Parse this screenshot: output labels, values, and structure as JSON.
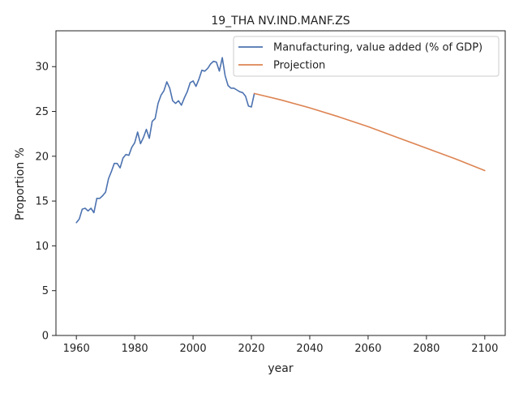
{
  "chart_data": {
    "type": "line",
    "title": "19_THA NV.IND.MANF.ZS",
    "xlabel": "year",
    "ylabel": "Proportion %",
    "xlim": [
      1953,
      2107
    ],
    "ylim": [
      0,
      34
    ],
    "xticks": [
      1960,
      1980,
      2000,
      2020,
      2040,
      2060,
      2080,
      2100
    ],
    "yticks": [
      0,
      5,
      10,
      15,
      20,
      25,
      30
    ],
    "grid": false,
    "legend_position": "top-right",
    "series": [
      {
        "name": "Manufacturing, value added (% of GDP)",
        "color": "#4c72b0",
        "x": [
          1960,
          1961,
          1962,
          1963,
          1964,
          1965,
          1966,
          1967,
          1968,
          1969,
          1970,
          1971,
          1972,
          1973,
          1974,
          1975,
          1976,
          1977,
          1978,
          1979,
          1980,
          1981,
          1982,
          1983,
          1984,
          1985,
          1986,
          1987,
          1988,
          1989,
          1990,
          1991,
          1992,
          1993,
          1994,
          1995,
          1996,
          1997,
          1998,
          1999,
          2000,
          2001,
          2002,
          2003,
          2004,
          2005,
          2006,
          2007,
          2008,
          2009,
          2010,
          2011,
          2012,
          2013,
          2014,
          2015,
          2016,
          2017,
          2018,
          2019,
          2020,
          2021
        ],
        "y": [
          12.6,
          13.0,
          14.1,
          14.2,
          13.9,
          14.2,
          13.7,
          15.3,
          15.3,
          15.6,
          16.0,
          17.5,
          18.3,
          19.2,
          19.2,
          18.7,
          19.8,
          20.2,
          20.1,
          21.0,
          21.5,
          22.7,
          21.4,
          22.1,
          23.0,
          22.0,
          23.9,
          24.2,
          25.9,
          26.8,
          27.3,
          28.3,
          27.6,
          26.2,
          25.9,
          26.2,
          25.7,
          26.5,
          27.2,
          28.2,
          28.4,
          27.8,
          28.6,
          29.6,
          29.5,
          29.8,
          30.3,
          30.6,
          30.5,
          29.5,
          31.0,
          29.0,
          27.9,
          27.6,
          27.6,
          27.4,
          27.2,
          27.1,
          26.7,
          25.6,
          25.5,
          27.0
        ]
      },
      {
        "name": "Projection",
        "color": "#dd8452",
        "x": [
          2021,
          2030,
          2040,
          2050,
          2060,
          2070,
          2080,
          2090,
          2100
        ],
        "y": [
          27.0,
          26.3,
          25.4,
          24.4,
          23.3,
          22.1,
          20.9,
          19.7,
          18.4
        ]
      }
    ]
  }
}
